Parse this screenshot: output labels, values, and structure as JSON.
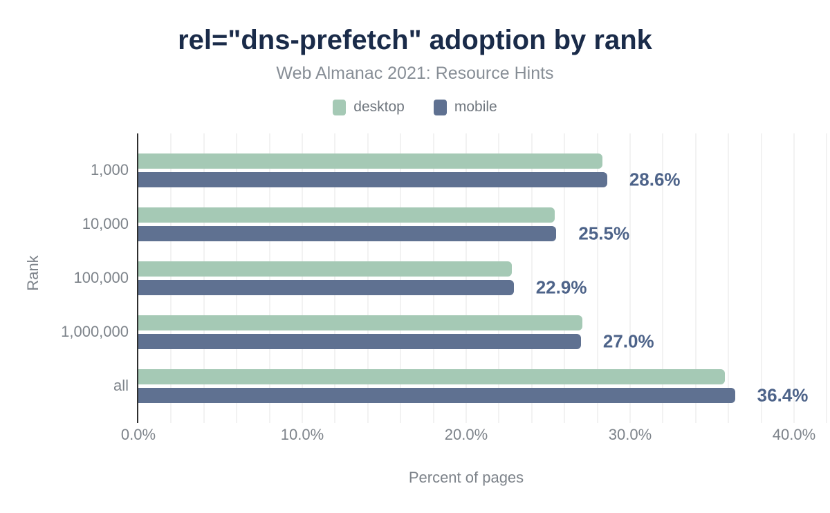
{
  "title": "rel=\"dns-prefetch\" adoption by rank",
  "subtitle": "Web Almanac 2021: Resource Hints",
  "legend": [
    {
      "label": "desktop",
      "color": "#a5c9b5"
    },
    {
      "label": "mobile",
      "color": "#5f7191"
    }
  ],
  "colors": {
    "title": "#1a2b49",
    "subtitle": "#878e96",
    "desktop_bar": "#a5c9b5",
    "mobile_bar": "#5f7191",
    "data_label": "#4d6389",
    "axis_text": "#7d838a",
    "gridline": "#f2f2f2",
    "axis_line": "#2e2e2e",
    "background": "#ffffff"
  },
  "chart_data": {
    "type": "bar",
    "orientation": "horizontal",
    "title": "rel=\"dns-prefetch\" adoption by rank",
    "subtitle": "Web Almanac 2021: Resource Hints",
    "categories": [
      "1,000",
      "10,000",
      "100,000",
      "1,000,000",
      "all"
    ],
    "series": [
      {
        "name": "desktop",
        "color": "#a5c9b5",
        "values": [
          28.3,
          25.4,
          22.8,
          27.1,
          35.8
        ]
      },
      {
        "name": "mobile",
        "color": "#5f7191",
        "values": [
          28.6,
          25.5,
          22.9,
          27.0,
          36.4
        ]
      }
    ],
    "data_labels": [
      "28.6%",
      "25.5%",
      "22.9%",
      "27.0%",
      "36.4%"
    ],
    "data_labels_series": "mobile",
    "xlabel": "Percent of pages",
    "ylabel": "Rank",
    "x_ticks": [
      {
        "value": 0,
        "label": "0.0%"
      },
      {
        "value": 10,
        "label": "10.0%"
      },
      {
        "value": 20,
        "label": "20.0%"
      },
      {
        "value": 30,
        "label": "30.0%"
      },
      {
        "value": 40,
        "label": "40.0%"
      }
    ],
    "xlim": [
      0,
      42
    ],
    "grid": true,
    "grid_step_percent": 2,
    "legend_position": "top"
  }
}
